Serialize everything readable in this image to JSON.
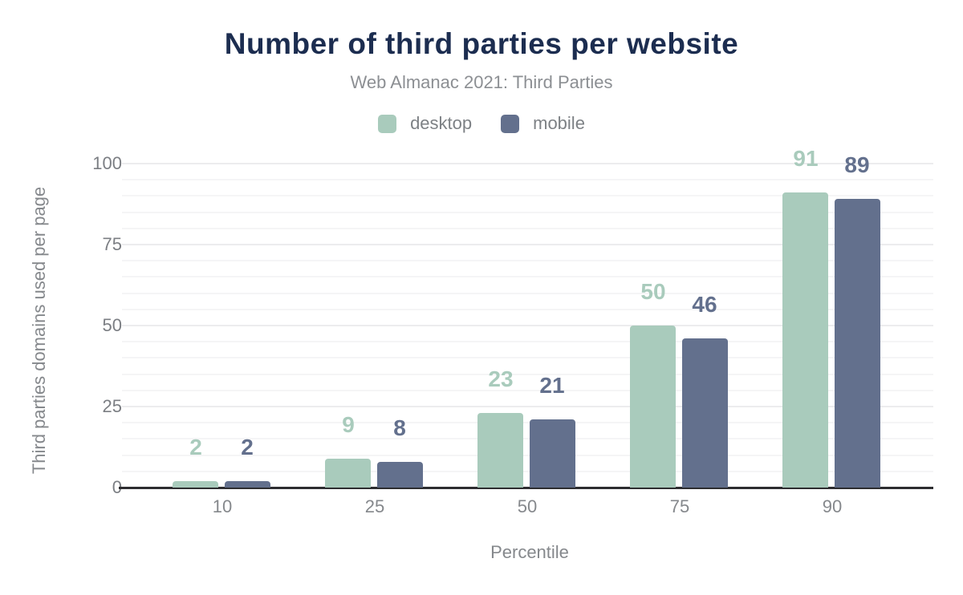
{
  "header": {
    "title": "Number of third parties per website",
    "subtitle": "Web Almanac 2021: Third Parties"
  },
  "legend": {
    "items": [
      {
        "label": "desktop",
        "color": "#a9cbbc"
      },
      {
        "label": "mobile",
        "color": "#63708d"
      }
    ]
  },
  "chart_data": {
    "type": "bar",
    "title": "Number of third parties per website",
    "subtitle": "Web Almanac 2021: Third Parties",
    "categories": [
      "10",
      "25",
      "50",
      "75",
      "90"
    ],
    "series": [
      {
        "name": "desktop",
        "color": "#a9cbbc",
        "values": [
          2,
          9,
          23,
          50,
          91
        ]
      },
      {
        "name": "mobile",
        "color": "#63708d",
        "values": [
          2,
          8,
          21,
          46,
          89
        ]
      }
    ],
    "data_labels": true,
    "xlabel": "Percentile",
    "ylabel": "Third parties domains used per page",
    "ylim": [
      0,
      100
    ],
    "yticks": [
      0,
      25,
      50,
      75,
      100
    ],
    "minor_grid_step": 5,
    "grid": true,
    "legend_position": "top"
  },
  "colors": {
    "background": "#ffffff",
    "title_text": "#1c2d50",
    "subtitle_text": "#8c8f93",
    "axis_text": "#85888c",
    "axis_line": "#2d2d30",
    "gridline_minor": "#f5f5f6",
    "gridline_major": "#ececee",
    "desktop": "#a9cbbc",
    "mobile": "#63708d"
  }
}
